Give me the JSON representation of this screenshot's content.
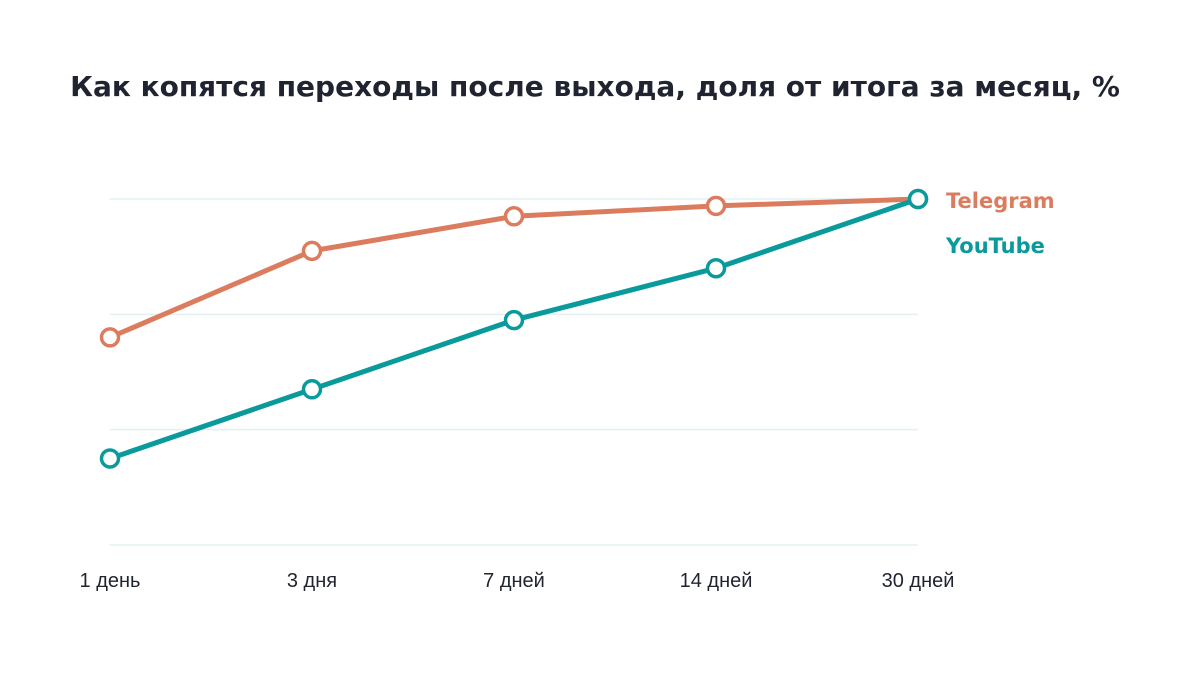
{
  "chart_data": {
    "type": "line",
    "title": "Как копятся переходы после выхода, доля от итога за месяц, %",
    "xlabel": "",
    "ylabel": "",
    "categories": [
      "1 день",
      "3 дня",
      "7 дней",
      "14 дней",
      "30 дней"
    ],
    "ylim": [
      0,
      100
    ],
    "grid": true,
    "legend_position": "right",
    "series": [
      {
        "name": "Telegram",
        "color": "#dc7c5f",
        "values": [
          60,
          85,
          95,
          98,
          100
        ]
      },
      {
        "name": "YouTube",
        "color": "#0a9a9c",
        "values": [
          25,
          45,
          65,
          80,
          100
        ]
      }
    ]
  }
}
